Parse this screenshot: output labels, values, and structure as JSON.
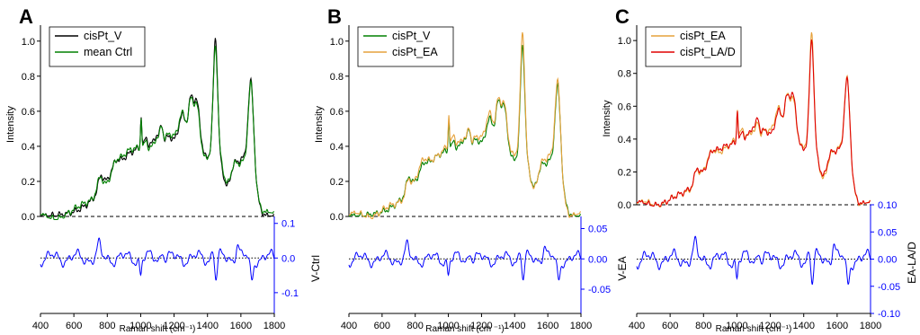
{
  "chart_data": [
    {
      "type": "line",
      "panel_label": "A",
      "xlabel": "Raman shift (cm⁻¹)",
      "xlim": [
        400,
        1800
      ],
      "x_ticks": [
        "400",
        "600",
        "800",
        "1000",
        "1200",
        "1400",
        "1600",
        "1800"
      ],
      "upper": {
        "ylabel": "Intensity",
        "ylim": [
          0,
          1.05
        ],
        "y_ticks": [
          "0.0",
          "0.2",
          "0.4",
          "0.6",
          "0.8",
          "1.0"
        ],
        "legend": "top-left",
        "series": [
          {
            "name": "cisPt_V",
            "color": "#000000",
            "variant": "base",
            "scale": 1.0
          },
          {
            "name": "mean Ctrl",
            "color": "#008000",
            "variant": "ctrl",
            "scale": 1.0
          }
        ]
      },
      "lower": {
        "ylabel": "V-Ctrl",
        "ylabel_side": "right",
        "ylim": [
          -0.16,
          0.12
        ],
        "y_ticks": [
          "-0.1",
          "0.0",
          "0.1"
        ],
        "y_tick_values": [
          -0.1,
          0.0,
          0.1
        ],
        "color": "#0000ff",
        "diff_scale": 0.055
      }
    },
    {
      "type": "line",
      "panel_label": "B",
      "xlabel": "Raman shift (cm ⁻¹)",
      "xlim": [
        400,
        1800
      ],
      "x_ticks": [
        "400",
        "600",
        "800",
        "1000",
        "1200",
        "1400",
        "1600",
        "1800"
      ],
      "upper": {
        "ylabel": "Intensity",
        "ylim": [
          0,
          1.05
        ],
        "y_ticks": [
          "0.0",
          "0.2",
          "0.4",
          "0.6",
          "0.8",
          "1.0"
        ],
        "legend": "top-left",
        "series": [
          {
            "name": "cisPt_V",
            "color": "#008000",
            "variant": "base",
            "scale": 0.96
          },
          {
            "name": "cisPt_EA",
            "color": "#e6a23c",
            "variant": "ea",
            "scale": 1.0
          }
        ]
      },
      "lower": {
        "ylabel": "V-EA",
        "ylabel_side": "right",
        "ylim": [
          -0.09,
          0.07
        ],
        "y_ticks": [
          "-0.05",
          "0.00",
          "0.05"
        ],
        "y_tick_values": [
          -0.05,
          0.0,
          0.05
        ],
        "color": "#0000ff",
        "diff_scale": 0.03
      }
    },
    {
      "type": "line",
      "panel_label": "C",
      "xlabel": "Raman shift (cm⁻¹)",
      "xlim": [
        400,
        1800
      ],
      "x_ticks": [
        "400",
        "600",
        "800",
        "1000",
        "1200",
        "1400",
        "1600",
        "1800"
      ],
      "upper": {
        "ylabel": "Intensity",
        "ylim": [
          0,
          1.05
        ],
        "y_ticks": [
          "0.0",
          "0.2",
          "0.4",
          "0.6",
          "0.8",
          "1.0"
        ],
        "legend": "top-left",
        "series": [
          {
            "name": "cisPt_EA",
            "color": "#e6a23c",
            "variant": "ea",
            "scale": 1.0
          },
          {
            "name": "cisPt_LA/D",
            "color": "#e00000",
            "variant": "lad",
            "scale": 1.0
          }
        ]
      },
      "lower": {
        "ylabel": "EA-LA/D",
        "ylabel_side": "right",
        "ylim": [
          -0.1,
          0.1
        ],
        "y_ticks": [
          "-0.10",
          "-0.05",
          "0.00",
          "0.05",
          "0.10"
        ],
        "y_tick_values": [
          -0.1,
          -0.05,
          0.0,
          0.05,
          0.1
        ],
        "color": "#0000ff",
        "diff_scale": 0.04
      }
    }
  ]
}
